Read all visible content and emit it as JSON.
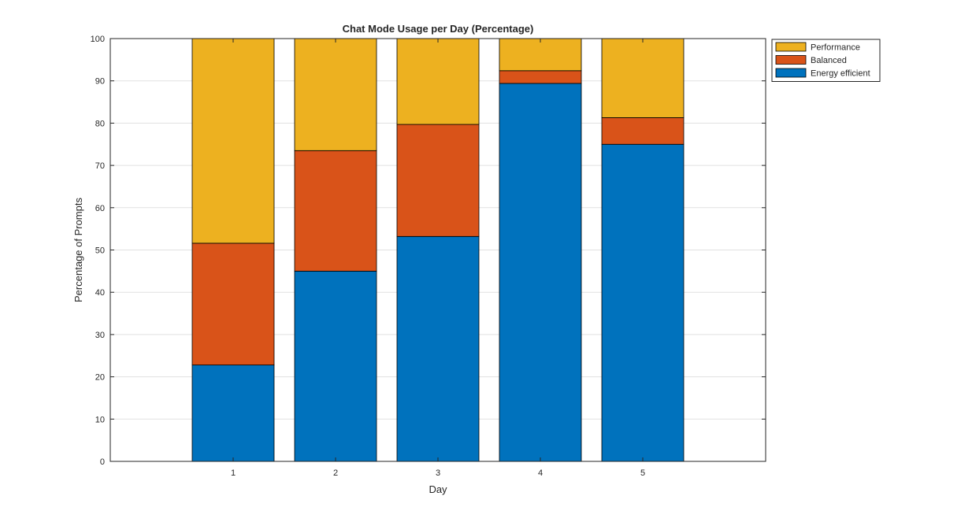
{
  "chart_data": {
    "type": "bar",
    "stacked": true,
    "title": "Chat Mode Usage per Day (Percentage)",
    "xlabel": "Day",
    "ylabel": "Percentage of Prompts",
    "categories": [
      "1",
      "2",
      "3",
      "4",
      "5"
    ],
    "xlim": [
      -0.2,
      6.2
    ],
    "ylim": [
      0,
      100
    ],
    "yticks": [
      0,
      10,
      20,
      30,
      40,
      50,
      60,
      70,
      80,
      90,
      100
    ],
    "grid": true,
    "legend_position": "top-right-outside",
    "series": [
      {
        "name": "Energy efficient",
        "color": "#0072BD",
        "values": [
          22.8,
          45.0,
          53.2,
          89.4,
          75.0
        ]
      },
      {
        "name": "Balanced",
        "color": "#D95319",
        "values": [
          28.8,
          28.5,
          26.5,
          3.0,
          6.3
        ]
      },
      {
        "name": "Performance",
        "color": "#EDB120",
        "values": [
          48.4,
          26.5,
          20.3,
          7.6,
          18.7
        ]
      }
    ],
    "legend_order": [
      "Performance",
      "Balanced",
      "Energy efficient"
    ]
  }
}
